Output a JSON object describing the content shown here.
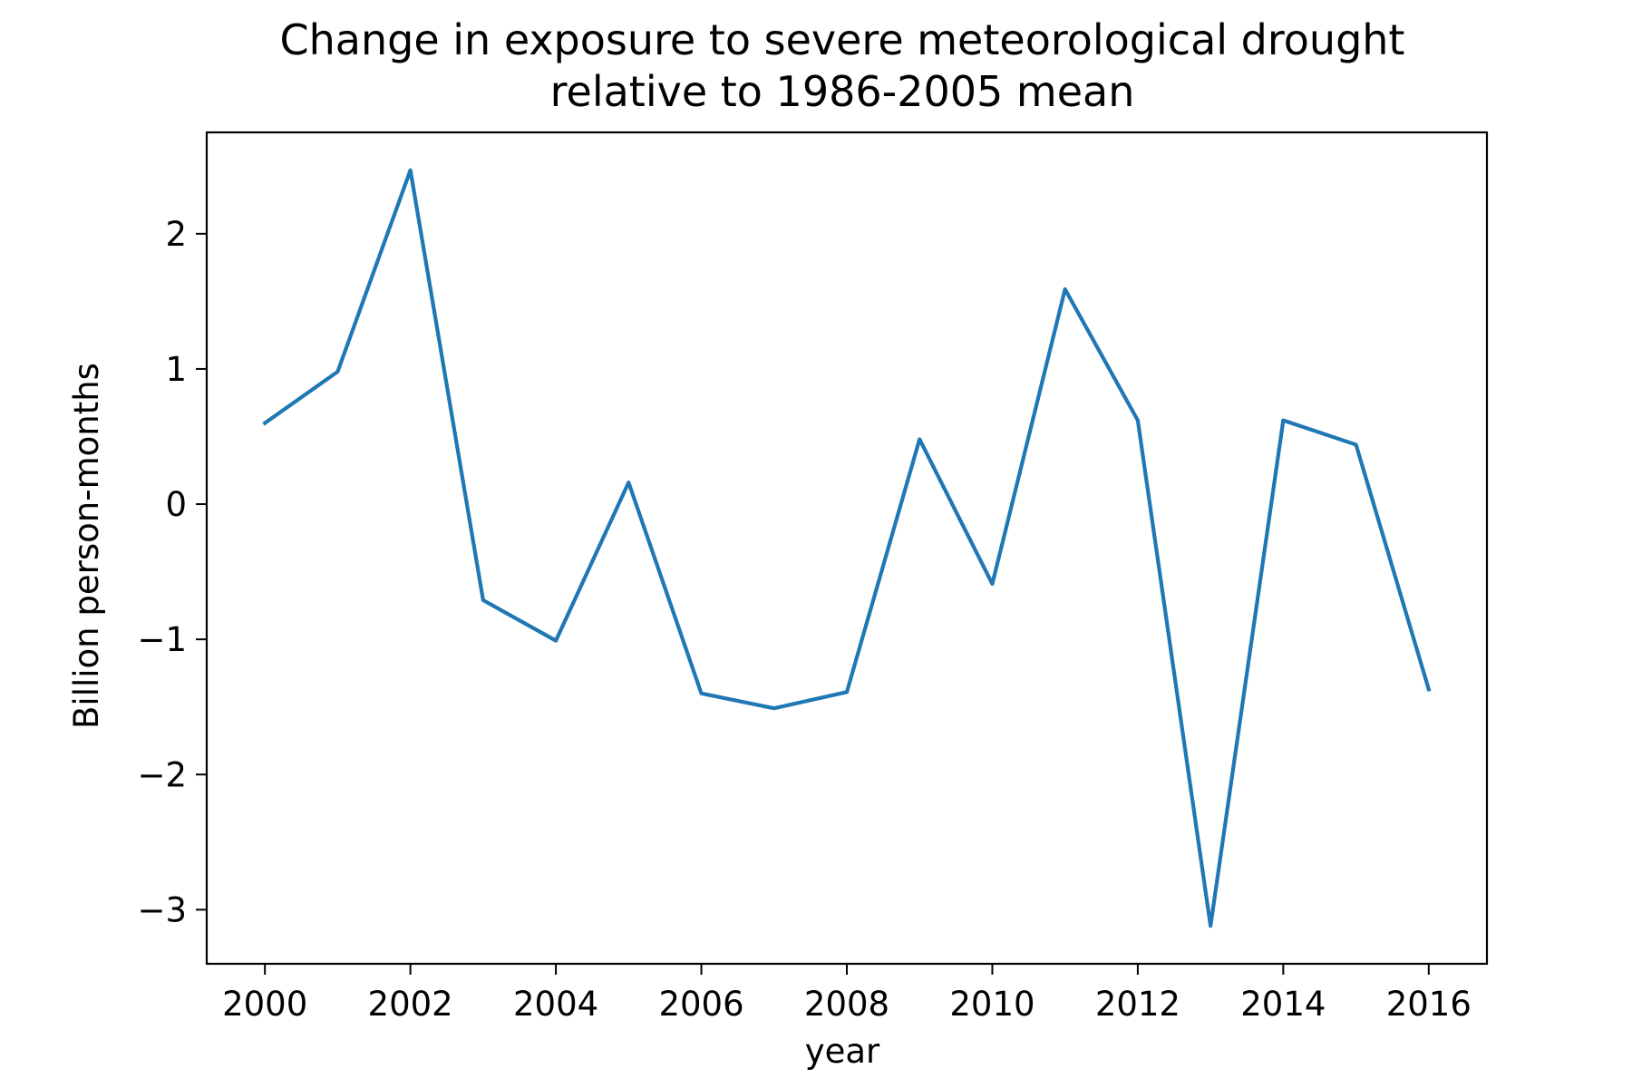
{
  "chart_data": {
    "type": "line",
    "title_lines": [
      "Change in exposure to severe meteorological drought",
      "relative to 1986-2005 mean"
    ],
    "xlabel": "year",
    "ylabel": "Billion person-months",
    "xlim": [
      1999.2,
      2016.8
    ],
    "ylim": [
      -3.4,
      2.75
    ],
    "x_ticks": [
      2000,
      2002,
      2004,
      2006,
      2008,
      2010,
      2012,
      2014,
      2016
    ],
    "y_ticks": [
      2,
      1,
      0,
      -1,
      -2,
      -3
    ],
    "y_tick_labels": [
      "2",
      "1",
      "0",
      "−1",
      "−2",
      "−3"
    ],
    "grid": false,
    "series": [
      {
        "color": "#1f77b4",
        "x": [
          2000,
          2001,
          2002,
          2003,
          2004,
          2005,
          2006,
          2007,
          2008,
          2009,
          2010,
          2011,
          2012,
          2013,
          2014,
          2015,
          2016
        ],
        "y": [
          0.6,
          0.98,
          2.47,
          -0.71,
          -1.01,
          0.16,
          -1.4,
          -1.51,
          -1.39,
          0.48,
          -0.59,
          1.59,
          0.62,
          -3.12,
          0.62,
          0.44,
          -1.37
        ]
      }
    ]
  }
}
